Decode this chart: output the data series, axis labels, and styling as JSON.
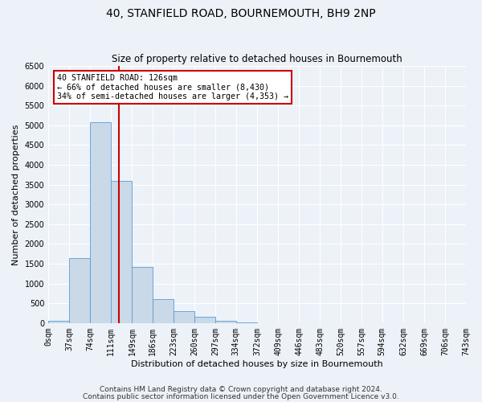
{
  "title": "40, STANFIELD ROAD, BOURNEMOUTH, BH9 2NP",
  "subtitle": "Size of property relative to detached houses in Bournemouth",
  "xlabel": "Distribution of detached houses by size in Bournemouth",
  "ylabel": "Number of detached properties",
  "bin_edges": [
    0,
    37,
    74,
    111,
    149,
    186,
    223,
    260,
    297,
    334,
    372,
    409,
    446,
    483,
    520,
    557,
    594,
    632,
    669,
    706,
    743
  ],
  "bin_counts": [
    50,
    1650,
    5070,
    3600,
    1420,
    610,
    300,
    150,
    60,
    10,
    5,
    3,
    2,
    0,
    0,
    0,
    0,
    0,
    0,
    0
  ],
  "bar_color": "#c9d9e8",
  "bar_edge_color": "#5b9bd5",
  "vline_x": 126,
  "vline_color": "#cc0000",
  "ylim": [
    0,
    6500
  ],
  "yticks": [
    0,
    500,
    1000,
    1500,
    2000,
    2500,
    3000,
    3500,
    4000,
    4500,
    5000,
    5500,
    6000,
    6500
  ],
  "xtick_labels": [
    "0sqm",
    "37sqm",
    "74sqm",
    "111sqm",
    "149sqm",
    "186sqm",
    "223sqm",
    "260sqm",
    "297sqm",
    "334sqm",
    "372sqm",
    "409sqm",
    "446sqm",
    "483sqm",
    "520sqm",
    "557sqm",
    "594sqm",
    "632sqm",
    "669sqm",
    "706sqm",
    "743sqm"
  ],
  "annotation_title": "40 STANFIELD ROAD: 126sqm",
  "annotation_line1": "← 66% of detached houses are smaller (8,430)",
  "annotation_line2": "34% of semi-detached houses are larger (4,353) →",
  "annotation_box_color": "#ffffff",
  "annotation_box_edge_color": "#cc0000",
  "footer1": "Contains HM Land Registry data © Crown copyright and database right 2024.",
  "footer2": "Contains public sector information licensed under the Open Government Licence v3.0.",
  "bg_color": "#edf2f8",
  "plot_bg_color": "#edf2f8",
  "grid_color": "#ffffff",
  "title_fontsize": 10,
  "subtitle_fontsize": 8.5,
  "label_fontsize": 8,
  "tick_fontsize": 7,
  "footer_fontsize": 6.5
}
